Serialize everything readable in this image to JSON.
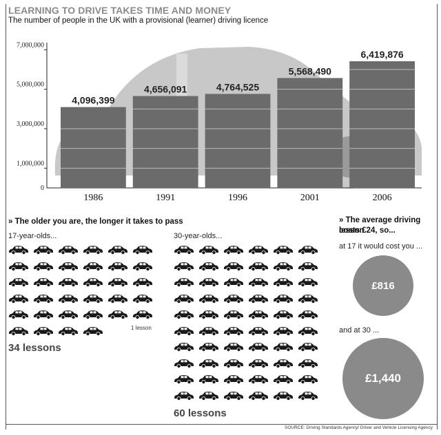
{
  "header": {
    "title": "LEARNING TO DRIVE TAKES TIME AND MONEY",
    "subtitle": "The number of people in the UK with a provisional (learner) driving licence"
  },
  "chart_data": {
    "type": "bar",
    "categories": [
      "1986",
      "1991",
      "1996",
      "2001",
      "2006"
    ],
    "values": [
      4096399,
      4656091,
      4764525,
      5568490,
      6419876
    ],
    "value_labels": [
      "4,096,399",
      "4,656,091",
      "4,764,525",
      "5,568,490",
      "6,419,876"
    ],
    "yticks": [
      1000000,
      3000000,
      5000000,
      7000000
    ],
    "ytick_labels": [
      "1,000,000",
      "3,000,000",
      "5,000,000",
      "7,000,000"
    ],
    "ylim": [
      0,
      7500000
    ],
    "bar_color": "#6b6b6b",
    "car_color": "#c8c8c8",
    "grid": false
  },
  "lessons": {
    "heading": "» The older you are, the longer it takes to pass",
    "group17": {
      "label": "17-year-olds...",
      "count": 34,
      "total": "34 lessons",
      "one_lesson_label": "1 lesson"
    },
    "group30": {
      "label": "30-year-olds...",
      "count": 60,
      "total": "60 lessons"
    }
  },
  "cost": {
    "heading_line1": "» The average driving lesson",
    "heading_line2": "costs £24, so...",
    "at17_label": "at 17 it would cost you ...",
    "at17_value": "£816",
    "at30_label": "and at 30 ...",
    "at30_value": "£1,440",
    "circle_color": "#8a8a8a"
  },
  "source": "SOURCE: Driving Standards Agency/ Driver and Vehicle Licensing Agency"
}
